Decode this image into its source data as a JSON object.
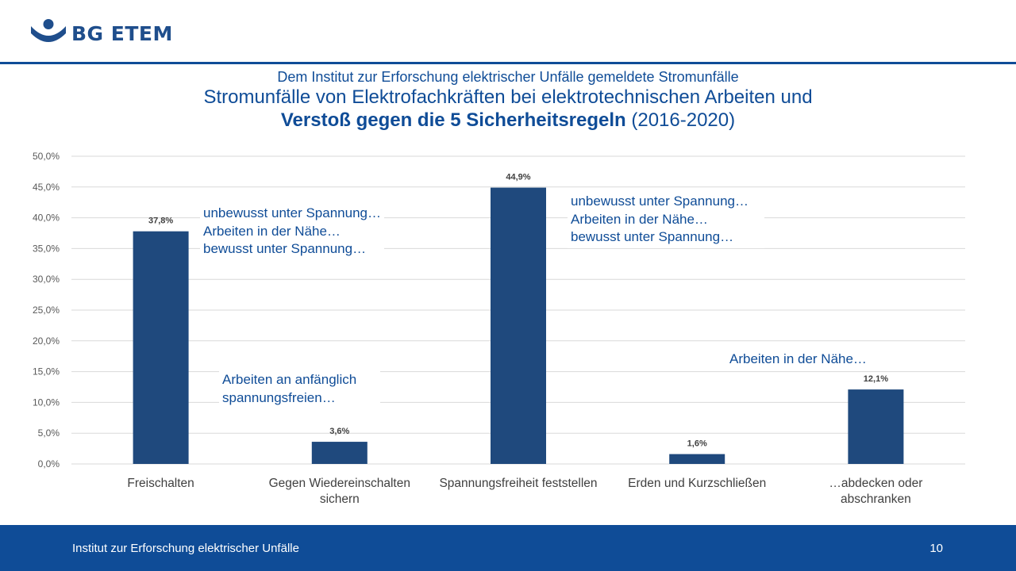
{
  "header": {
    "logo_text": "BG ETEM"
  },
  "titles": {
    "supertitle": "Dem Institut zur Erforschung elektrischer Unfälle gemeldete Stromunfälle",
    "title_line1": "Stromunfälle von Elektrofachkräften bei elektrotechnischen Arbeiten und",
    "title_bold": "Verstoß gegen die 5 Sicherheitsregeln",
    "title_period": " (2016-2020)"
  },
  "chart_data": {
    "type": "bar",
    "categories": [
      "Freischalten",
      "Gegen Wiedereinschalten sichern",
      "Spannungsfreiheit feststellen",
      "Erden und Kurzschließen",
      "…abdecken oder abschranken"
    ],
    "category_lines": [
      [
        "Freischalten"
      ],
      [
        "Gegen Wiedereinschalten",
        "sichern"
      ],
      [
        "Spannungsfreiheit feststellen"
      ],
      [
        "Erden und Kurzschließen"
      ],
      [
        "…abdecken oder",
        "abschranken"
      ]
    ],
    "values": [
      37.8,
      3.6,
      44.9,
      1.6,
      12.1
    ],
    "data_labels": [
      "37,8%",
      "3,6%",
      "44,9%",
      "1,6%",
      "12,1%"
    ],
    "ylim": [
      0,
      50
    ],
    "yticks": [
      "0,0%",
      "5,0%",
      "10,0%",
      "15,0%",
      "20,0%",
      "25,0%",
      "30,0%",
      "35,0%",
      "40,0%",
      "45,0%",
      "50,0%"
    ],
    "grid": true,
    "bar_color": "#1f497d",
    "grid_color": "#d9d9d9"
  },
  "annotations": [
    {
      "lines": [
        "unbewusst unter Spannung…",
        "Arbeiten in der Nähe…",
        "bewusst unter Spannung…"
      ]
    },
    {
      "lines": [
        "Arbeiten an anfänglich",
        "spannungsfreien…"
      ]
    },
    {
      "lines": [
        "unbewusst unter Spannung…",
        "Arbeiten in der Nähe…",
        "bewusst unter Spannung…"
      ]
    },
    {
      "lines": [
        "Arbeiten in der Nähe…"
      ]
    }
  ],
  "footer": {
    "institute": "Institut zur Erforschung elektrischer Unfälle",
    "page_number": "10"
  },
  "colors": {
    "brand_blue": "#0f4c97",
    "logo_blue": "#1f4e8c",
    "text_dark": "#404040"
  }
}
